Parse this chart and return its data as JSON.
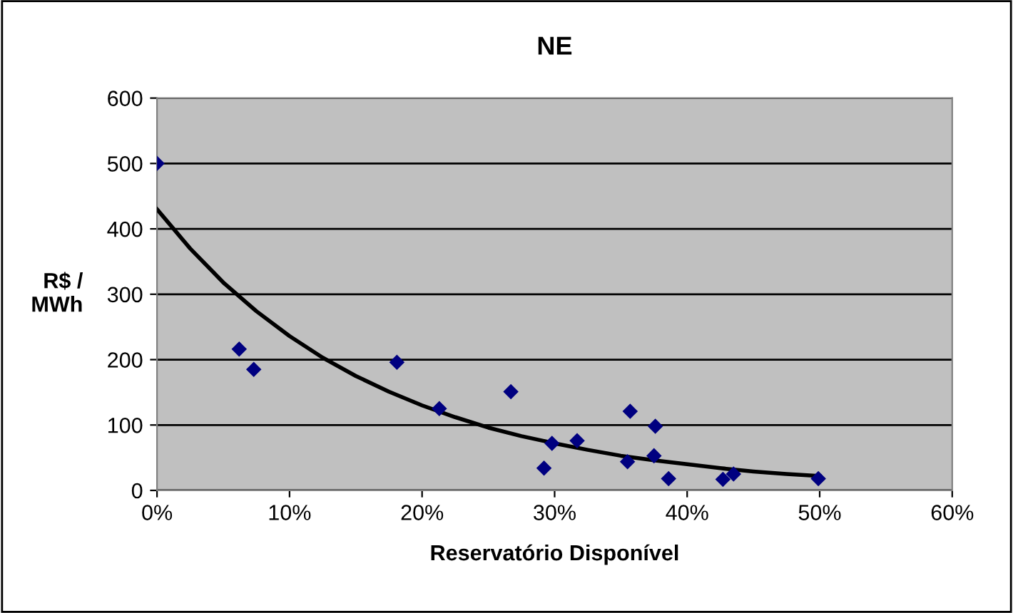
{
  "chart_data": {
    "type": "scatter",
    "title": "NE",
    "xlabel": "Reservatório Disponível",
    "ylabel": "R$ /\nMWh",
    "xlim": [
      0,
      60
    ],
    "xticks": [
      {
        "value": 0,
        "label": "0%"
      },
      {
        "value": 10,
        "label": "10%"
      },
      {
        "value": 20,
        "label": "20%"
      },
      {
        "value": 30,
        "label": "30%"
      },
      {
        "value": 40,
        "label": "40%"
      },
      {
        "value": 50,
        "label": "50%"
      },
      {
        "value": 60,
        "label": "60%"
      }
    ],
    "ylim": [
      0,
      600
    ],
    "yticks": [
      0,
      100,
      200,
      300,
      400,
      500,
      600
    ],
    "grid": "y",
    "legend": false,
    "series": [
      {
        "color": "#000080",
        "marker": "diamond",
        "x": [
          0,
          6.2,
          7.3,
          18.1,
          21.3,
          26.7,
          29.2,
          29.8,
          31.7,
          35.7,
          35.5,
          37.6,
          37.5,
          38.6,
          42.7,
          43.5,
          49.9
        ],
        "values": [
          500,
          216,
          185,
          196,
          125,
          151,
          34,
          72,
          76,
          121,
          44,
          98,
          53,
          18,
          17,
          25,
          18
        ]
      },
      {
        "type": "line",
        "color": "#000000",
        "marker": "none",
        "line_style": "solid",
        "x": [
          0,
          2.5,
          5,
          7.5,
          10,
          12.5,
          15,
          17.5,
          20,
          22.5,
          25,
          27.5,
          30,
          32.5,
          35,
          37.5,
          40,
          42.5,
          45,
          47.5,
          50
        ],
        "values": [
          430,
          370,
          318,
          274,
          236,
          203,
          175,
          151,
          130,
          112,
          96,
          83,
          72,
          62,
          53,
          46,
          40,
          34,
          29,
          25,
          22
        ]
      }
    ]
  }
}
